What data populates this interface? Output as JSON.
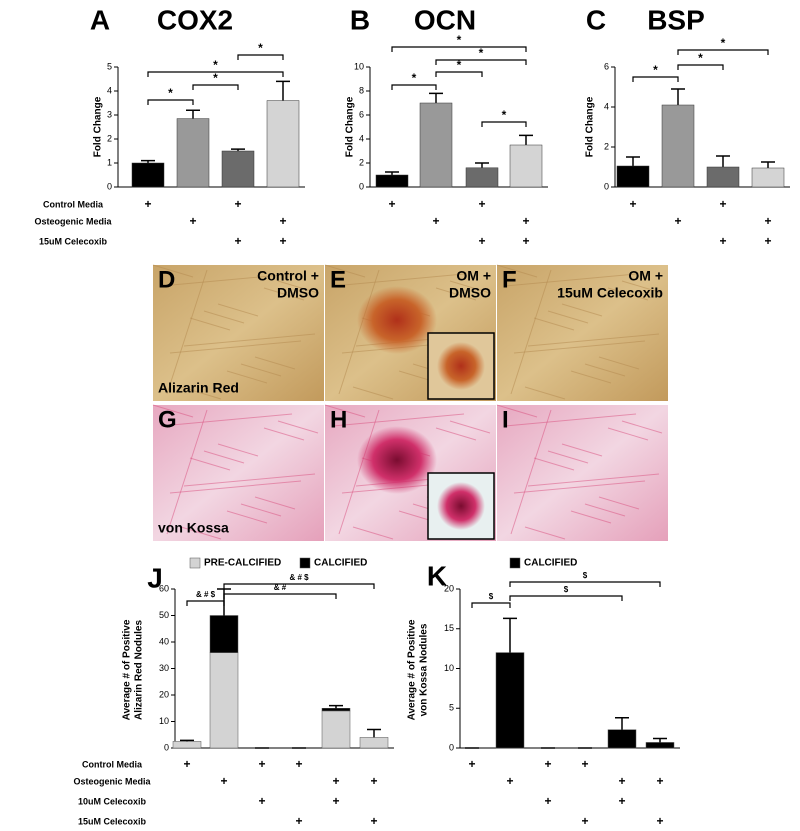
{
  "chart_data": [
    {
      "type": "bar",
      "panel": "A",
      "title": "COX2",
      "y_label": [
        "Fold Change"
      ],
      "ylim": [
        0,
        5
      ],
      "yticks": [
        0,
        1,
        2,
        3,
        4,
        5
      ],
      "values": [
        1.0,
        2.85,
        1.5,
        3.6
      ],
      "errors": [
        0.1,
        0.35,
        0.08,
        0.8
      ],
      "colors": [
        "#000000",
        "#999999",
        "#6b6b6b",
        "#d4d4d4"
      ],
      "conditions": [
        [
          "+",
          null,
          "+",
          null
        ],
        [
          null,
          "+",
          null,
          "+"
        ],
        [
          null,
          null,
          "+",
          "+"
        ]
      ],
      "brackets": [
        {
          "from": 0,
          "to": 1,
          "label": "*"
        },
        {
          "from": 1,
          "to": 2,
          "label": "*"
        },
        {
          "from": 0,
          "to": 3,
          "label": "*"
        },
        {
          "from": 2,
          "to": 3,
          "label": "*"
        }
      ]
    },
    {
      "type": "bar",
      "panel": "B",
      "title": "OCN",
      "y_label": [
        "Fold Change"
      ],
      "ylim": [
        0,
        10
      ],
      "yticks": [
        0,
        2,
        4,
        6,
        8,
        10
      ],
      "values": [
        1.0,
        7.0,
        1.6,
        3.5
      ],
      "errors": [
        0.25,
        0.8,
        0.4,
        0.8
      ],
      "colors": [
        "#000000",
        "#999999",
        "#6b6b6b",
        "#d4d4d4"
      ],
      "conditions": [
        [
          "+",
          null,
          "+",
          null
        ],
        [
          null,
          "+",
          null,
          "+"
        ],
        [
          null,
          null,
          "+",
          "+"
        ]
      ],
      "brackets": [
        {
          "from": 0,
          "to": 1,
          "label": "*"
        },
        {
          "from": 1,
          "to": 2,
          "label": "*"
        },
        {
          "from": 1,
          "to": 3,
          "label": "*"
        },
        {
          "from": 0,
          "to": 3,
          "label": "*"
        },
        {
          "from": 2,
          "to": 3,
          "label": "*"
        }
      ]
    },
    {
      "type": "bar",
      "panel": "C",
      "title": "BSP",
      "y_label": [
        "Fold Change"
      ],
      "ylim": [
        0,
        6
      ],
      "yticks": [
        0,
        2,
        4,
        6
      ],
      "values": [
        1.05,
        4.1,
        1.0,
        0.95
      ],
      "errors": [
        0.45,
        0.8,
        0.55,
        0.3
      ],
      "colors": [
        "#000000",
        "#999999",
        "#6b6b6b",
        "#d4d4d4"
      ],
      "conditions": [
        [
          "+",
          null,
          "+",
          null
        ],
        [
          null,
          "+",
          null,
          "+"
        ],
        [
          null,
          null,
          "+",
          "+"
        ]
      ],
      "brackets": [
        {
          "from": 0,
          "to": 1,
          "label": "*"
        },
        {
          "from": 1,
          "to": 2,
          "label": "*"
        },
        {
          "from": 1,
          "to": 3,
          "label": "*"
        }
      ]
    },
    {
      "type": "stacked_bar",
      "panel": "J",
      "y_label": [
        "Average # of Positive",
        "Alizarin Red Nodules"
      ],
      "ylim": [
        0,
        60
      ],
      "yticks": [
        0,
        10,
        20,
        30,
        40,
        50,
        60
      ],
      "series": [
        {
          "name": "PRE-CALCIFIED",
          "color": "#d3d3d3",
          "values": [
            2.5,
            36,
            0,
            0,
            14,
            4
          ]
        },
        {
          "name": "CALCIFIED",
          "color": "#000000",
          "values": [
            0,
            14,
            0,
            0,
            1,
            0
          ]
        }
      ],
      "errors": [
        0.4,
        10,
        0,
        0,
        1,
        3
      ],
      "conditions": [
        [
          "+",
          null,
          "+",
          "+",
          null,
          null
        ],
        [
          null,
          "+",
          null,
          null,
          "+",
          "+"
        ],
        [
          null,
          null,
          "+",
          null,
          "+",
          null
        ],
        [
          null,
          null,
          null,
          "+",
          null,
          "+"
        ]
      ],
      "brackets": [
        {
          "from": 0,
          "to": 1,
          "label": "& # $"
        },
        {
          "from": 1,
          "to": 4,
          "label": "& #"
        },
        {
          "from": 1,
          "to": 5,
          "label": "& # $"
        }
      ]
    },
    {
      "type": "stacked_bar",
      "panel": "K",
      "y_label": [
        "Average # of Positive",
        "von Kossa Nodules"
      ],
      "ylim": [
        0,
        20
      ],
      "yticks": [
        0,
        5,
        10,
        15,
        20
      ],
      "series": [
        {
          "name": "CALCIFIED",
          "color": "#000000",
          "values": [
            0,
            12,
            0,
            0,
            2.3,
            0.7
          ]
        }
      ],
      "errors": [
        0,
        4.3,
        0,
        0,
        1.5,
        0.5
      ],
      "conditions": [
        [
          "+",
          null,
          "+",
          "+",
          null,
          null
        ],
        [
          null,
          "+",
          null,
          null,
          "+",
          "+"
        ],
        [
          null,
          null,
          "+",
          null,
          "+",
          null
        ],
        [
          null,
          null,
          null,
          "+",
          null,
          "+"
        ]
      ],
      "brackets": [
        {
          "from": 0,
          "to": 1,
          "label": "$"
        },
        {
          "from": 1,
          "to": 4,
          "label": "$"
        },
        {
          "from": 1,
          "to": 5,
          "label": "$"
        }
      ]
    }
  ],
  "treatments_abc": [
    "Control Media",
    "Osteogenic Media",
    "15uM Celecoxib"
  ],
  "treatments_jk": [
    "Control Media",
    "Osteogenic Media",
    "10uM Celecoxib",
    "15uM Celecoxib"
  ],
  "images": [
    {
      "letter": "D",
      "caption": [
        "Control +",
        "DMSO"
      ],
      "stain": "Alizarin Red"
    },
    {
      "letter": "E",
      "caption": [
        "OM +",
        "DMSO"
      ]
    },
    {
      "letter": "F",
      "caption": [
        "OM +",
        "15uM Celecoxib"
      ]
    },
    {
      "letter": "G",
      "stain": "von Kossa"
    },
    {
      "letter": "H"
    },
    {
      "letter": "I"
    }
  ]
}
